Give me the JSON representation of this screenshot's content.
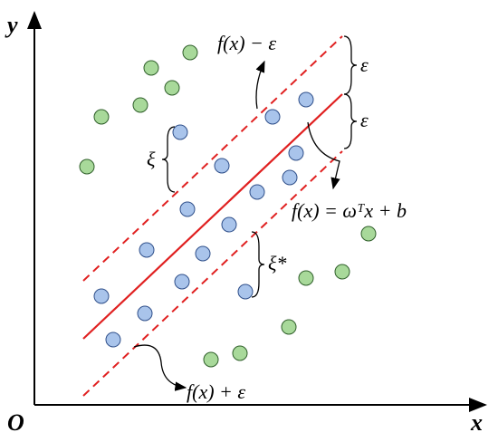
{
  "axes": {
    "y_label": "y",
    "x_label": "x",
    "origin_label": "O"
  },
  "labels": {
    "upper_boundary": "f(x) − ε",
    "upper_epsilon": "ε",
    "lower_epsilon": "ε",
    "xi": "ξ",
    "regression_line": "f(x) = ωᵀx + b",
    "xi_star": "ξ*",
    "lower_boundary": "f(x) + ε"
  }
}
